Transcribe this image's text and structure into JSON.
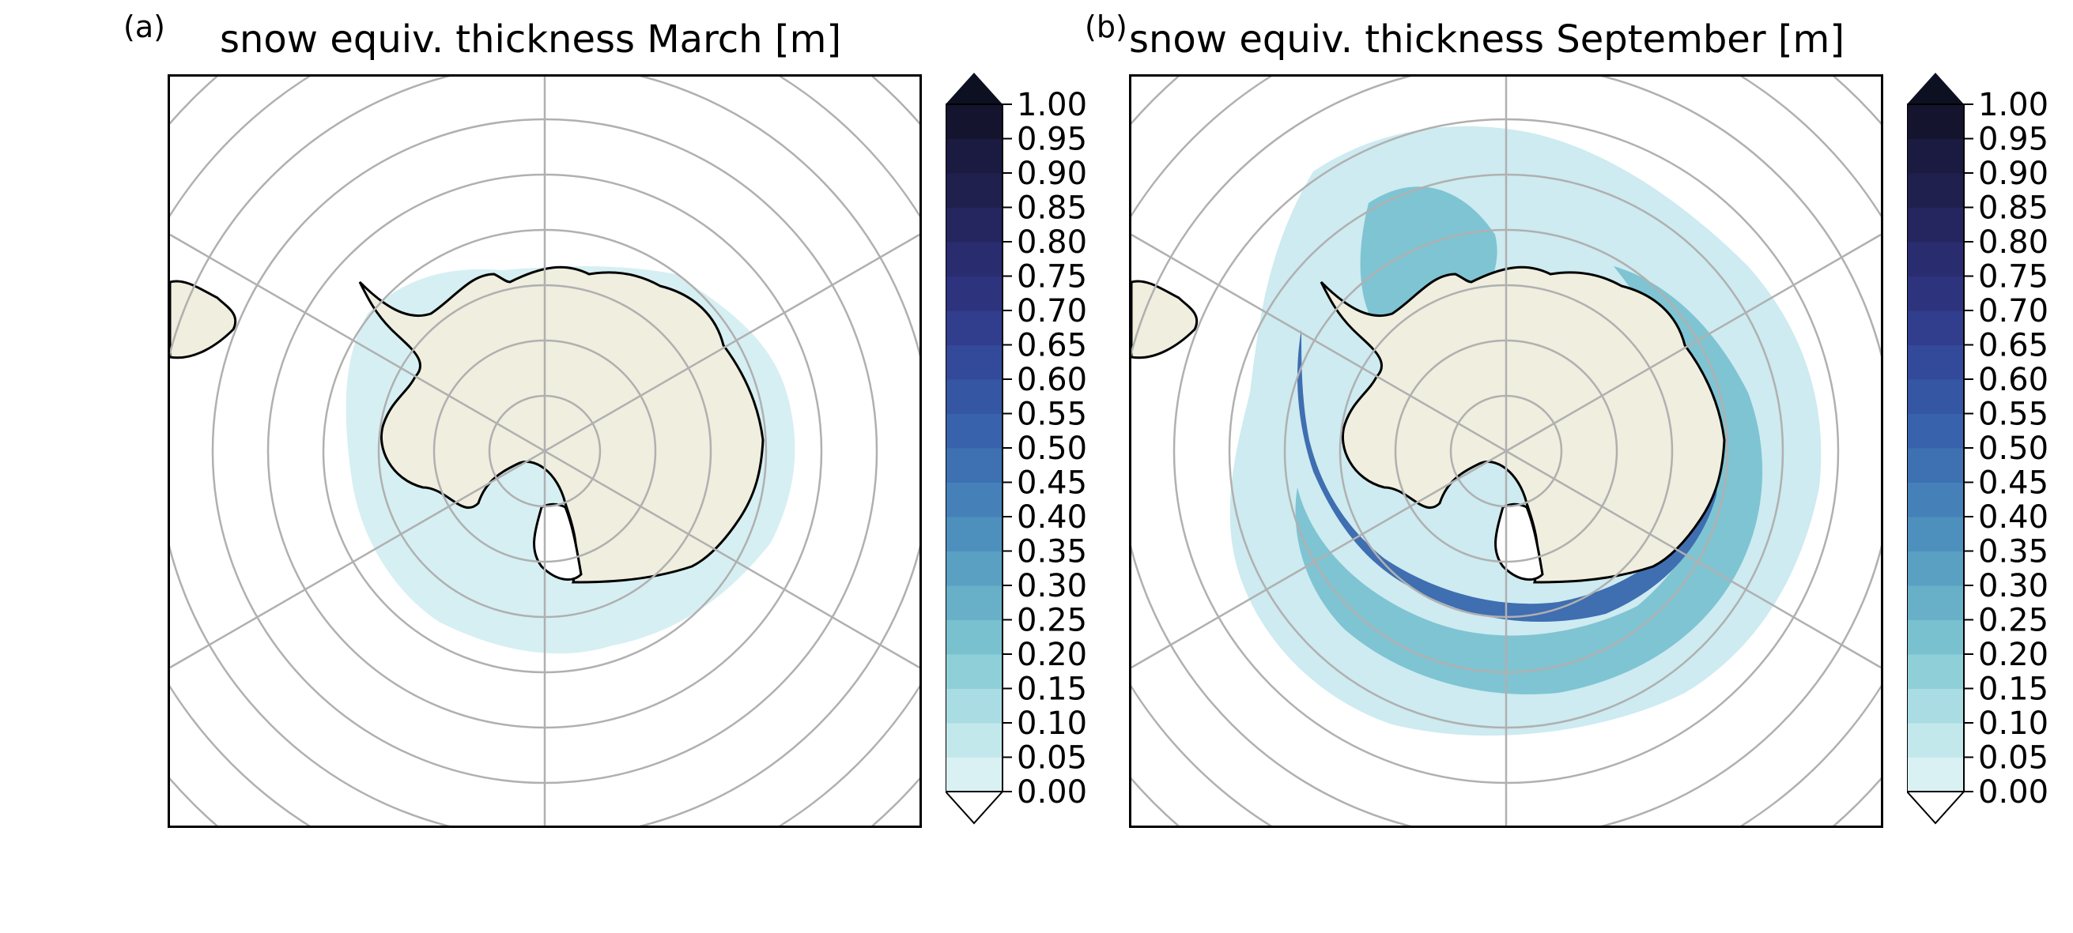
{
  "figure": {
    "panels": [
      {
        "letter": "(a)",
        "title": "snow equiv. thickness March [m]"
      },
      {
        "letter": "(b)",
        "title": "snow equiv. thickness September [m]"
      }
    ],
    "colorbar": {
      "ticks": [
        "1.00",
        "0.95",
        "0.90",
        "0.85",
        "0.80",
        "0.75",
        "0.70",
        "0.65",
        "0.60",
        "0.55",
        "0.50",
        "0.45",
        "0.40",
        "0.35",
        "0.30",
        "0.25",
        "0.20",
        "0.15",
        "0.10",
        "0.05",
        "0.00"
      ],
      "colors": [
        "#d9f1f3",
        "#c3e8ec",
        "#a9dde3",
        "#8fd0d8",
        "#79c1cf",
        "#68b0c8",
        "#5aa0c2",
        "#4e90bd",
        "#4581b8",
        "#3d71b2",
        "#3862ab",
        "#3556a2",
        "#33499a",
        "#313d8d",
        "#2e337e",
        "#292c6f",
        "#25255f",
        "#20204f",
        "#1b1a40",
        "#15142f"
      ],
      "over_color": "#0d1020",
      "under_color": "#ffffff"
    },
    "map_colors": {
      "land": "#efeedf",
      "coast": "#000000",
      "grid": "#b0b0b0",
      "light_ice": "#d6eff3"
    }
  }
}
